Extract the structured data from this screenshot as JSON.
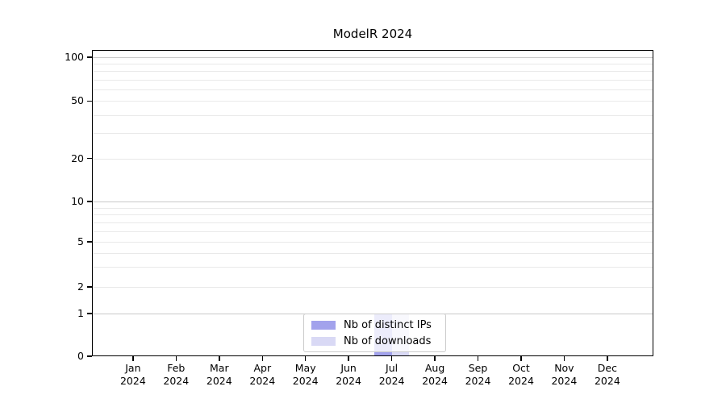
{
  "chart_data": {
    "type": "bar",
    "title": "ModelR 2024",
    "categories": [
      {
        "month": "Jan",
        "year": "2024"
      },
      {
        "month": "Feb",
        "year": "2024"
      },
      {
        "month": "Mar",
        "year": "2024"
      },
      {
        "month": "Apr",
        "year": "2024"
      },
      {
        "month": "May",
        "year": "2024"
      },
      {
        "month": "Jun",
        "year": "2024"
      },
      {
        "month": "Jul",
        "year": "2024"
      },
      {
        "month": "Aug",
        "year": "2024"
      },
      {
        "month": "Sep",
        "year": "2024"
      },
      {
        "month": "Oct",
        "year": "2024"
      },
      {
        "month": "Nov",
        "year": "2024"
      },
      {
        "month": "Dec",
        "year": "2024"
      }
    ],
    "series": [
      {
        "name": "Nb of distinct IPs",
        "color": "#a2a2ec",
        "values": [
          0,
          0,
          0,
          0,
          0,
          0,
          1,
          0,
          0,
          0,
          0,
          0
        ]
      },
      {
        "name": "Nb of downloads",
        "color": "#d9d9f5",
        "values": [
          0,
          0,
          0,
          0,
          0,
          0,
          1,
          0,
          0,
          0,
          0,
          0
        ]
      }
    ],
    "y_axis": {
      "scale": "symlog",
      "range": [
        0,
        110
      ],
      "labeled_ticks": [
        100,
        50,
        20,
        10,
        5,
        2,
        1,
        0
      ],
      "decade_ticks": [
        1,
        10,
        100
      ],
      "minor_ticks": [
        2,
        3,
        4,
        5,
        6,
        7,
        8,
        9,
        20,
        30,
        40,
        50,
        60,
        70,
        80,
        90
      ]
    },
    "legend": {
      "position": "bottom-center",
      "entries": [
        "Nb of distinct IPs",
        "Nb of downloads"
      ]
    },
    "grid": {
      "major_color": "#c9c9c9",
      "minor_color": "#e9e9e9"
    },
    "colors": {
      "spine": "#000000",
      "background": "#ffffff",
      "text": "#000000"
    }
  }
}
